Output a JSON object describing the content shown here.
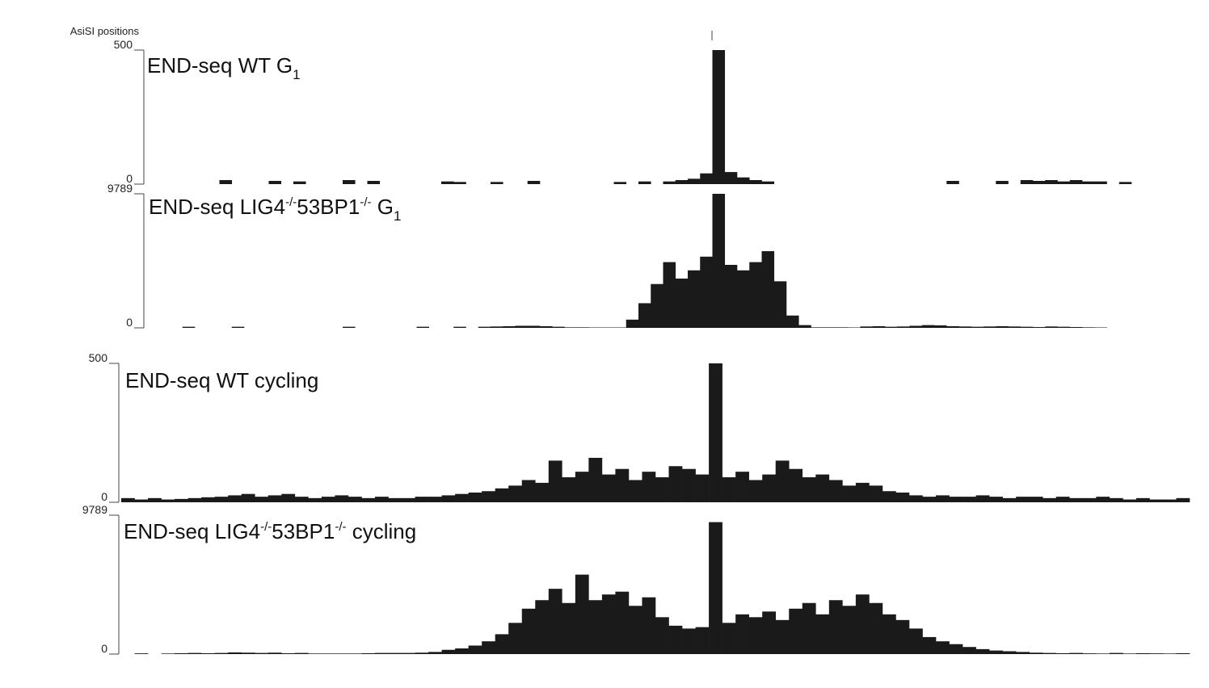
{
  "annotation": "AsiSI positions",
  "chart_data": [
    {
      "type": "bar",
      "title": [
        "END-seq WT G",
        "1"
      ],
      "color": "#1a1a1a",
      "ylim": [
        0,
        500
      ],
      "yticks": [
        0,
        500
      ],
      "values": [
        0,
        0,
        0,
        0,
        0,
        0,
        15,
        0,
        0,
        0,
        12,
        0,
        10,
        0,
        0,
        0,
        15,
        0,
        12,
        0,
        0,
        0,
        0,
        0,
        10,
        8,
        0,
        0,
        8,
        0,
        0,
        12,
        0,
        0,
        0,
        0,
        0,
        0,
        8,
        0,
        10,
        0,
        10,
        15,
        20,
        40,
        500,
        45,
        25,
        15,
        10,
        0,
        0,
        0,
        0,
        0,
        0,
        0,
        0,
        0,
        0,
        0,
        0,
        0,
        0,
        12,
        0,
        0,
        0,
        12,
        0,
        15,
        12,
        15,
        10,
        15,
        10,
        10,
        0,
        8
      ]
    },
    {
      "type": "bar",
      "title": [
        "END-seq LIG4",
        "-/-",
        "53BP1",
        "-/-",
        " G",
        "1"
      ],
      "color": "#1a1a1a",
      "ylim": [
        0,
        9789
      ],
      "yticks": [
        0,
        9789
      ],
      "values": [
        0,
        0,
        0,
        80,
        0,
        0,
        0,
        80,
        0,
        0,
        0,
        0,
        0,
        0,
        0,
        0,
        80,
        0,
        0,
        0,
        0,
        0,
        80,
        0,
        0,
        80,
        0,
        80,
        100,
        120,
        150,
        150,
        120,
        80,
        40,
        40,
        30,
        30,
        30,
        600,
        1800,
        3200,
        4800,
        3600,
        4200,
        5200,
        9789,
        4600,
        4200,
        4800,
        5600,
        3400,
        900,
        200,
        40,
        40,
        40,
        30,
        100,
        120,
        80,
        100,
        150,
        200,
        180,
        120,
        100,
        80,
        100,
        120,
        100,
        80,
        60,
        100,
        80,
        60,
        40,
        30,
        0,
        0
      ]
    },
    {
      "type": "bar",
      "title": [
        "END-seq WT cycling"
      ],
      "color": "#1a1a1a",
      "ylim": [
        0,
        500
      ],
      "yticks": [
        0,
        500
      ],
      "values": [
        15,
        10,
        15,
        10,
        12,
        15,
        18,
        20,
        25,
        30,
        20,
        25,
        30,
        20,
        15,
        20,
        25,
        20,
        15,
        20,
        15,
        15,
        20,
        20,
        25,
        30,
        35,
        40,
        50,
        60,
        80,
        70,
        150,
        90,
        110,
        160,
        100,
        120,
        80,
        110,
        90,
        130,
        120,
        100,
        500,
        90,
        110,
        80,
        100,
        150,
        120,
        90,
        100,
        80,
        60,
        70,
        60,
        40,
        35,
        25,
        20,
        25,
        20,
        20,
        25,
        20,
        15,
        20,
        20,
        15,
        20,
        15,
        15,
        20,
        15,
        10,
        15,
        10,
        10,
        15
      ]
    },
    {
      "type": "bar",
      "title": [
        "END-seq LIG4",
        "-/-",
        "53BP1",
        "-/-",
        " cycling"
      ],
      "color": "#1a1a1a",
      "ylim": [
        0,
        9789
      ],
      "yticks": [
        0,
        9789
      ],
      "values": [
        0,
        50,
        0,
        40,
        60,
        80,
        60,
        80,
        120,
        100,
        80,
        100,
        60,
        80,
        40,
        40,
        40,
        40,
        60,
        80,
        80,
        80,
        100,
        150,
        300,
        400,
        600,
        900,
        1400,
        2200,
        3200,
        3800,
        4600,
        3600,
        5600,
        3800,
        4200,
        4400,
        3400,
        4000,
        2600,
        2000,
        1800,
        1900,
        9300,
        2200,
        2800,
        2600,
        3000,
        2400,
        3200,
        3600,
        2800,
        3800,
        3400,
        4200,
        3600,
        2800,
        2400,
        1800,
        1200,
        900,
        700,
        500,
        350,
        250,
        200,
        150,
        100,
        80,
        60,
        80,
        50,
        40,
        80,
        40,
        60,
        50,
        40,
        60
      ]
    }
  ]
}
